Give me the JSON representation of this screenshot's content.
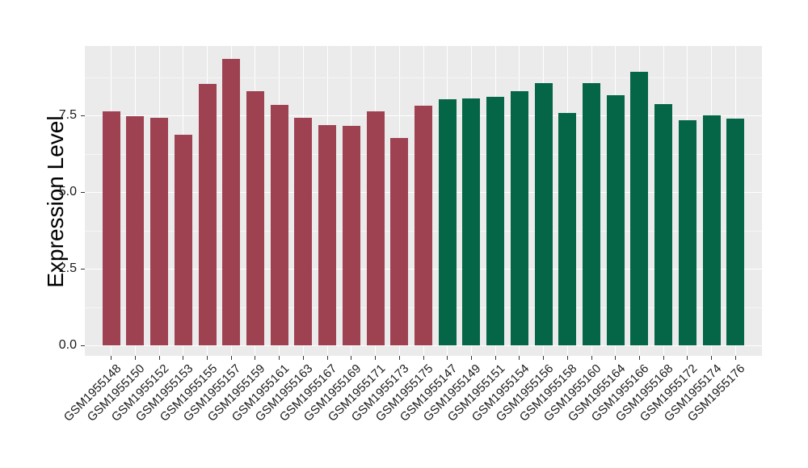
{
  "figure": {
    "background": "#FFFFFF",
    "panel_bg": "#EBEBEB",
    "grid_major_color": "#FFFFFF",
    "grid_minor_color": "#F6F6F6",
    "tick_mark_color": "#333333",
    "axis_text_color": "#1A1A1A"
  },
  "chart_data": {
    "type": "bar",
    "title": "",
    "xlabel": "",
    "ylabel": "Expression Level",
    "ylim": [
      0,
      9.76
    ],
    "yticks": [
      0,
      2.5,
      5,
      7.5
    ],
    "ytick_labels": [
      "0.0",
      "2.5",
      "5.0",
      "7.5"
    ],
    "grid": "on",
    "legend": "none",
    "bar_orientation": "vertical",
    "series": [
      {
        "name": "maroon-group",
        "color": "#9E4252",
        "points": [
          {
            "label": "GSM1955148",
            "value": 7.62
          },
          {
            "label": "GSM1955150",
            "value": 7.47
          },
          {
            "label": "GSM1955152",
            "value": 7.41
          },
          {
            "label": "GSM1955153",
            "value": 6.86
          },
          {
            "label": "GSM1955155",
            "value": 8.53
          },
          {
            "label": "GSM1955157",
            "value": 9.33
          },
          {
            "label": "GSM1955159",
            "value": 8.3
          },
          {
            "label": "GSM1955161",
            "value": 7.83
          },
          {
            "label": "GSM1955163",
            "value": 7.43
          },
          {
            "label": "GSM1955167",
            "value": 7.18
          },
          {
            "label": "GSM1955169",
            "value": 7.16
          },
          {
            "label": "GSM1955171",
            "value": 7.62
          },
          {
            "label": "GSM1955173",
            "value": 6.77
          },
          {
            "label": "GSM1955175",
            "value": 7.82
          }
        ]
      },
      {
        "name": "green-group",
        "color": "#046647",
        "points": [
          {
            "label": "GSM1955147",
            "value": 8.02
          },
          {
            "label": "GSM1955149",
            "value": 8.06
          },
          {
            "label": "GSM1955151",
            "value": 8.1
          },
          {
            "label": "GSM1955154",
            "value": 8.28
          },
          {
            "label": "GSM1955156",
            "value": 8.56
          },
          {
            "label": "GSM1955158",
            "value": 7.59
          },
          {
            "label": "GSM1955160",
            "value": 8.54
          },
          {
            "label": "GSM1955164",
            "value": 8.15
          },
          {
            "label": "GSM1955166",
            "value": 8.91
          },
          {
            "label": "GSM1955168",
            "value": 7.87
          },
          {
            "label": "GSM1955172",
            "value": 7.33
          },
          {
            "label": "GSM1955174",
            "value": 7.5
          },
          {
            "label": "GSM1955176",
            "value": 7.4
          }
        ]
      }
    ]
  }
}
